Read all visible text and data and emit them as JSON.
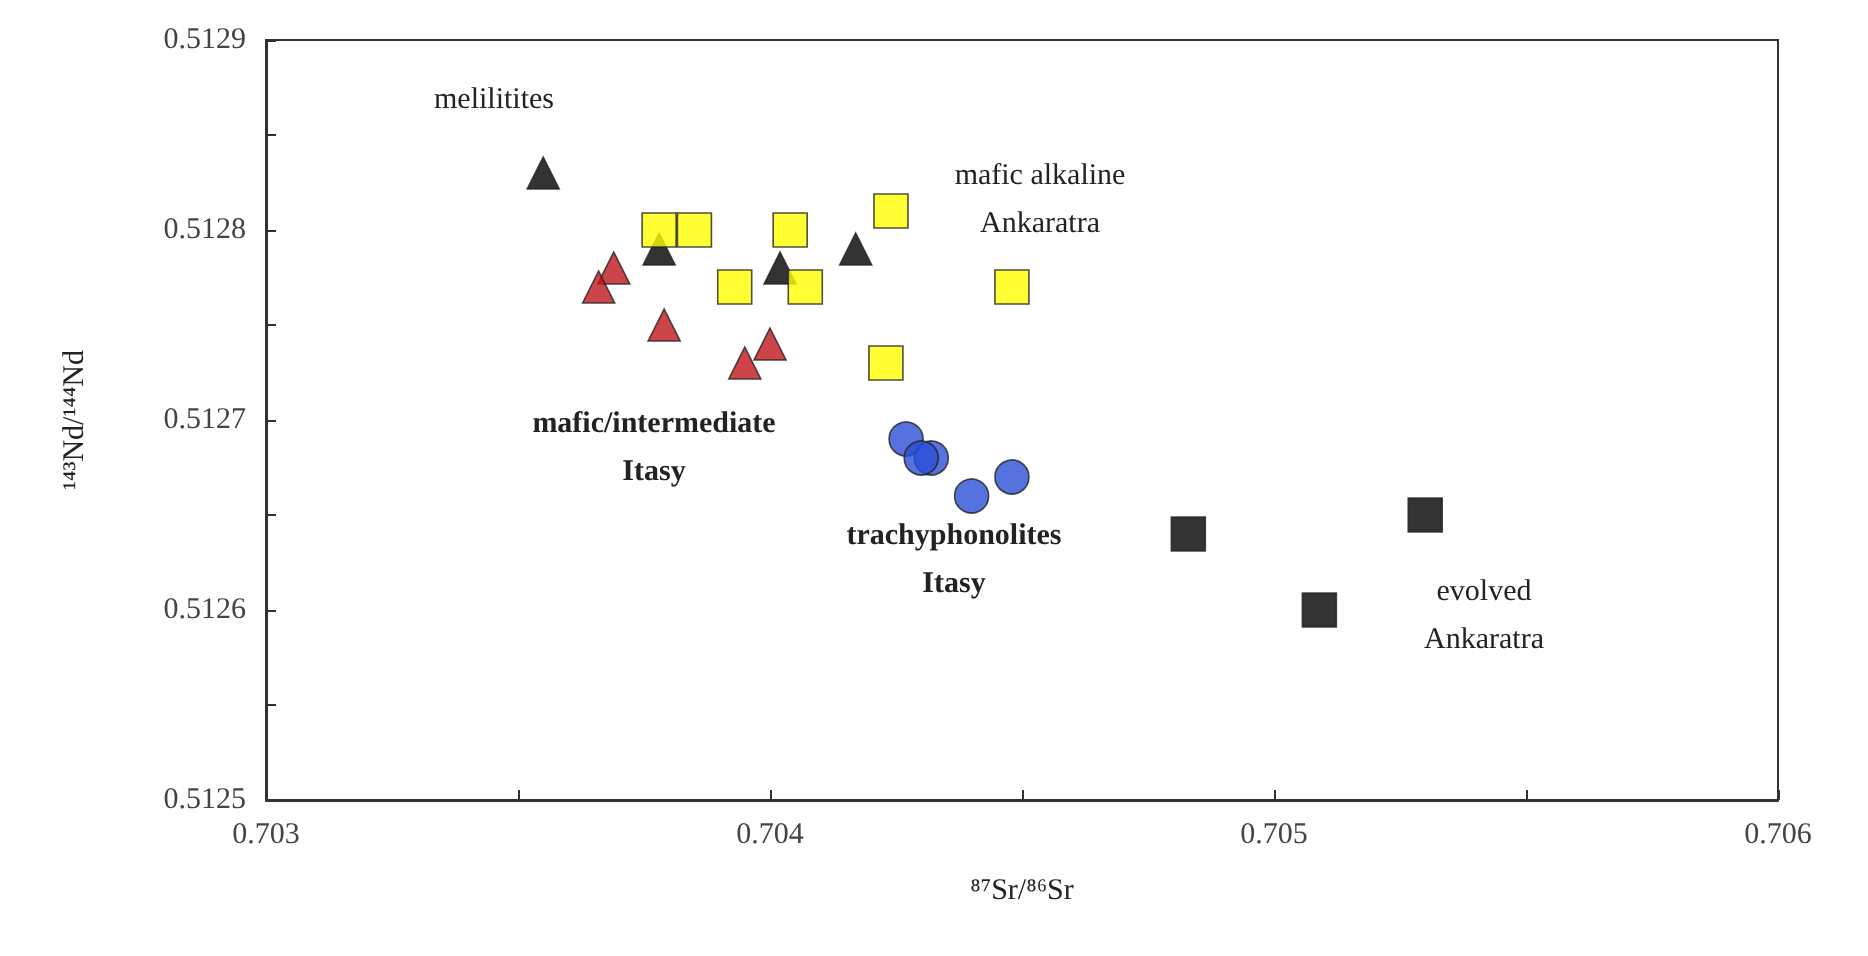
{
  "chart_data": {
    "type": "scatter",
    "xlabel": "⁸⁷Sr/⁸⁶Sr",
    "ylabel": "¹⁴³Nd/¹⁴⁴Nd",
    "xlim": [
      0.703,
      0.706
    ],
    "ylim": [
      0.5125,
      0.5129
    ],
    "xticks": [
      0.703,
      {
        "value": 0.7035,
        "label": null
      },
      0.704,
      {
        "value": 0.7045,
        "label": null
      },
      0.705,
      {
        "value": 0.7055,
        "label": null
      },
      0.706
    ],
    "yticks": [
      0.5125,
      {
        "value": 0.51255,
        "label": null
      },
      0.5126,
      {
        "value": 0.51265,
        "label": null
      },
      0.5127,
      {
        "value": 0.51275,
        "label": null
      },
      0.5128,
      {
        "value": 0.51285,
        "label": null
      },
      0.5129
    ],
    "grid": false,
    "series": [
      {
        "color": "#000000",
        "marker": "triangle",
        "x": [
          0.70355,
          0.70378,
          0.70402,
          0.70417
        ],
        "values": [
          0.51283,
          0.51279,
          0.51278,
          0.51279
        ]
      },
      {
        "color": "#ffff00",
        "marker": "square",
        "x": [
          0.70378,
          0.70385,
          0.70404,
          0.70424,
          0.70393,
          0.70407,
          0.70423,
          0.70448
        ],
        "values": [
          0.5128,
          0.5128,
          0.5128,
          0.51281,
          0.51277,
          0.51277,
          0.51273,
          0.51277
        ]
      },
      {
        "color": "#c0161b",
        "marker": "triangle",
        "x": [
          0.70369,
          0.70366,
          0.70379,
          0.70395,
          0.704
        ],
        "values": [
          0.51278,
          0.51277,
          0.51275,
          0.51273,
          0.51274
        ]
      },
      {
        "color": "#2a4fd6",
        "marker": "circle",
        "x": [
          0.70427,
          0.70432,
          0.7043,
          0.7044,
          0.70448
        ],
        "values": [
          0.51269,
          0.51268,
          0.51268,
          0.51266,
          0.51267
        ]
      },
      {
        "color": "#000000",
        "marker": "square",
        "x": [
          0.70483,
          0.7053,
          0.70509
        ],
        "values": [
          0.51264,
          0.51265,
          0.5126
        ]
      }
    ],
    "annotations": [
      "melilitites",
      "mafic alkaline\nAnkaratra",
      "mafic/intermediate\nItasy",
      "trachyphonolites\nItasy",
      "evolved\nAnkaratra"
    ]
  }
}
